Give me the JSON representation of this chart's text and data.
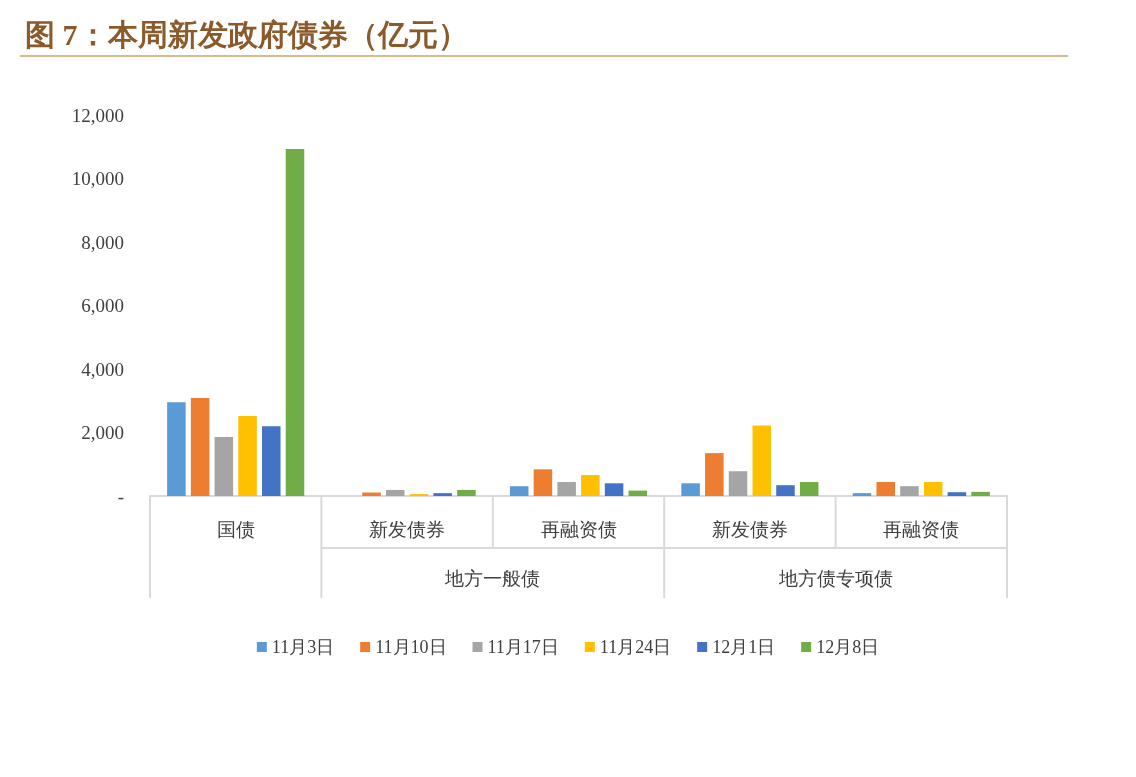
{
  "chart_data": {
    "type": "bar",
    "title": "图 7：本周新发政府债券（亿元）",
    "categories": [
      "国债",
      "新发债券",
      "再融资债",
      "新发债券",
      "再融资债"
    ],
    "annotations": [
      "地方一般债",
      "地方债专项债"
    ],
    "series": [
      {
        "name": "11月3日",
        "color": "#5b9bd5",
        "values": [
          2950,
          0,
          310,
          400,
          90
        ]
      },
      {
        "name": "11月10日",
        "color": "#ed7d31",
        "values": [
          3090,
          110,
          840,
          1350,
          440
        ]
      },
      {
        "name": "11月17日",
        "color": "#a5a5a5",
        "values": [
          1860,
          190,
          440,
          780,
          310
        ]
      },
      {
        "name": "11月24日",
        "color": "#ffc000",
        "values": [
          2520,
          60,
          660,
          2220,
          440
        ]
      },
      {
        "name": "12月1日",
        "color": "#4472c4",
        "values": [
          2200,
          90,
          400,
          340,
          120
        ]
      },
      {
        "name": "12月8日",
        "color": "#70ad47",
        "values": [
          10930,
          190,
          170,
          440,
          130
        ]
      }
    ],
    "ylim": [
      0,
      12000
    ],
    "yticks": [
      {
        "value": 0,
        "label": "-"
      },
      {
        "value": 2000,
        "label": "2,000"
      },
      {
        "value": 4000,
        "label": "4,000"
      },
      {
        "value": 6000,
        "label": "6,000"
      },
      {
        "value": 8000,
        "label": "8,000"
      },
      {
        "value": 10000,
        "label": "10,000"
      },
      {
        "value": 12000,
        "label": "12,000"
      }
    ],
    "grid": false,
    "legend": "bottom"
  }
}
